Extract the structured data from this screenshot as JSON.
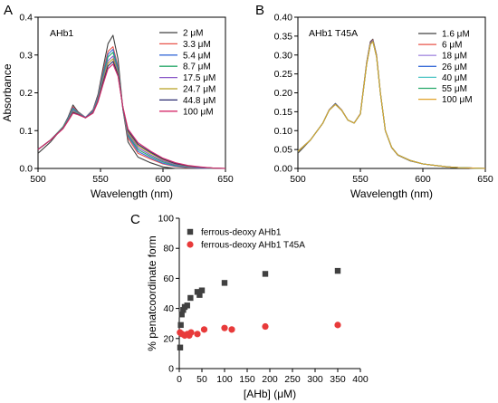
{
  "panels": {
    "a": {
      "letter": "A",
      "label": "AHb1"
    },
    "b": {
      "letter": "B",
      "label": "AHb1 T45A"
    },
    "c": {
      "letter": "C"
    }
  },
  "chart_data": [
    {
      "type": "line",
      "panel": "A",
      "xlabel": "Wavelength (nm)",
      "ylabel": "Absorbance",
      "xlim": [
        500,
        650
      ],
      "ylim": [
        0,
        0.4
      ],
      "xticks": [
        500,
        550,
        600,
        650
      ],
      "yticks": [
        0.0,
        0.1,
        0.2,
        0.3,
        0.4
      ],
      "legend_position": "top-right",
      "x": [
        500,
        510,
        520,
        524,
        528,
        532,
        538,
        544,
        548,
        552,
        556,
        560,
        564,
        568,
        572,
        580,
        590,
        600,
        610,
        620,
        630,
        640,
        650
      ],
      "series": [
        {
          "name": "2 μM",
          "color": "#404040",
          "values": [
            0.04,
            0.07,
            0.11,
            0.135,
            0.168,
            0.15,
            0.135,
            0.155,
            0.195,
            0.265,
            0.33,
            0.352,
            0.29,
            0.155,
            0.07,
            0.03,
            0.015,
            0.004,
            0.0,
            0.0,
            0.0,
            0.0,
            0.0
          ]
        },
        {
          "name": "3.3 μM",
          "color": "#e8534a",
          "values": [
            0.05,
            0.075,
            0.11,
            0.132,
            0.163,
            0.148,
            0.135,
            0.153,
            0.19,
            0.255,
            0.31,
            0.322,
            0.27,
            0.155,
            0.08,
            0.04,
            0.025,
            0.012,
            0.005,
            0.002,
            0.001,
            0.0,
            0.0
          ]
        },
        {
          "name": "5.4 μM",
          "color": "#3b6ed8",
          "values": [
            0.05,
            0.075,
            0.11,
            0.132,
            0.16,
            0.147,
            0.135,
            0.152,
            0.188,
            0.25,
            0.302,
            0.315,
            0.266,
            0.156,
            0.085,
            0.045,
            0.028,
            0.014,
            0.006,
            0.003,
            0.001,
            0.0,
            0.0
          ]
        },
        {
          "name": "8.7 μM",
          "color": "#27a86a",
          "values": [
            0.05,
            0.075,
            0.11,
            0.13,
            0.157,
            0.146,
            0.134,
            0.15,
            0.185,
            0.245,
            0.295,
            0.307,
            0.262,
            0.157,
            0.088,
            0.05,
            0.032,
            0.017,
            0.008,
            0.004,
            0.002,
            0.0,
            0.0
          ]
        },
        {
          "name": "17.5 μM",
          "color": "#8a58c8",
          "values": [
            0.05,
            0.075,
            0.108,
            0.128,
            0.153,
            0.145,
            0.134,
            0.149,
            0.182,
            0.238,
            0.285,
            0.297,
            0.256,
            0.158,
            0.092,
            0.055,
            0.036,
            0.02,
            0.01,
            0.005,
            0.002,
            0.001,
            0.0
          ]
        },
        {
          "name": "24.7 μM",
          "color": "#b8a020",
          "values": [
            0.05,
            0.075,
            0.107,
            0.127,
            0.15,
            0.144,
            0.134,
            0.148,
            0.18,
            0.232,
            0.278,
            0.29,
            0.252,
            0.16,
            0.096,
            0.06,
            0.04,
            0.023,
            0.012,
            0.006,
            0.003,
            0.001,
            0.0
          ]
        },
        {
          "name": "44.8 μM",
          "color": "#2a2a70",
          "values": [
            0.05,
            0.075,
            0.106,
            0.126,
            0.148,
            0.143,
            0.134,
            0.147,
            0.178,
            0.227,
            0.271,
            0.283,
            0.248,
            0.161,
            0.1,
            0.064,
            0.043,
            0.025,
            0.013,
            0.007,
            0.003,
            0.001,
            0.0
          ]
        },
        {
          "name": "100 μM",
          "color": "#d42a6a",
          "values": [
            0.05,
            0.075,
            0.105,
            0.125,
            0.146,
            0.142,
            0.134,
            0.146,
            0.176,
            0.222,
            0.264,
            0.276,
            0.244,
            0.162,
            0.104,
            0.068,
            0.046,
            0.027,
            0.015,
            0.008,
            0.004,
            0.001,
            0.0
          ]
        }
      ]
    },
    {
      "type": "line",
      "panel": "B",
      "xlabel": "Wavelength (nm)",
      "ylabel": "",
      "xlim": [
        500,
        650
      ],
      "ylim": [
        0,
        0.4
      ],
      "xticks": [
        500,
        550,
        600,
        650
      ],
      "yticks": [
        0.0,
        0.05,
        0.1,
        0.15,
        0.2,
        0.25,
        0.3,
        0.35,
        0.4
      ],
      "legend_position": "top-right",
      "x": [
        500,
        510,
        520,
        525,
        530,
        535,
        540,
        545,
        550,
        555,
        558,
        560,
        563,
        566,
        570,
        575,
        580,
        590,
        600,
        610,
        620,
        630,
        640,
        650
      ],
      "series": [
        {
          "name": "1.6 μM",
          "color": "#404040",
          "values": [
            0.04,
            0.075,
            0.12,
            0.155,
            0.172,
            0.155,
            0.128,
            0.12,
            0.145,
            0.28,
            0.335,
            0.342,
            0.3,
            0.2,
            0.1,
            0.055,
            0.035,
            0.02,
            0.012,
            0.008,
            0.004,
            0.002,
            0.001,
            0.0
          ]
        },
        {
          "name": "6 μM",
          "color": "#e8534a",
          "values": [
            0.045,
            0.075,
            0.12,
            0.155,
            0.17,
            0.155,
            0.128,
            0.12,
            0.145,
            0.278,
            0.332,
            0.34,
            0.298,
            0.2,
            0.1,
            0.056,
            0.036,
            0.021,
            0.012,
            0.008,
            0.004,
            0.002,
            0.001,
            0.0
          ]
        },
        {
          "name": "18 μM",
          "color": "#a78ee0",
          "values": [
            0.045,
            0.075,
            0.12,
            0.155,
            0.17,
            0.154,
            0.128,
            0.12,
            0.144,
            0.276,
            0.33,
            0.338,
            0.296,
            0.2,
            0.1,
            0.056,
            0.036,
            0.021,
            0.012,
            0.008,
            0.004,
            0.002,
            0.001,
            0.0
          ]
        },
        {
          "name": "26 μM",
          "color": "#3b6ed8",
          "values": [
            0.045,
            0.075,
            0.12,
            0.154,
            0.17,
            0.154,
            0.128,
            0.12,
            0.144,
            0.276,
            0.33,
            0.338,
            0.296,
            0.2,
            0.1,
            0.056,
            0.036,
            0.021,
            0.012,
            0.008,
            0.004,
            0.002,
            0.001,
            0.0
          ]
        },
        {
          "name": "40 μM",
          "color": "#4cc4c4",
          "values": [
            0.045,
            0.075,
            0.12,
            0.154,
            0.169,
            0.154,
            0.128,
            0.12,
            0.144,
            0.275,
            0.328,
            0.336,
            0.295,
            0.2,
            0.1,
            0.056,
            0.036,
            0.021,
            0.012,
            0.008,
            0.004,
            0.002,
            0.001,
            0.0
          ]
        },
        {
          "name": "55 μM",
          "color": "#27a86a",
          "values": [
            0.045,
            0.075,
            0.12,
            0.154,
            0.169,
            0.154,
            0.128,
            0.12,
            0.144,
            0.275,
            0.328,
            0.336,
            0.295,
            0.2,
            0.1,
            0.056,
            0.036,
            0.021,
            0.012,
            0.008,
            0.004,
            0.002,
            0.001,
            0.0
          ]
        },
        {
          "name": "100 μM",
          "color": "#e0a22a",
          "values": [
            0.045,
            0.075,
            0.12,
            0.154,
            0.169,
            0.154,
            0.128,
            0.12,
            0.144,
            0.275,
            0.328,
            0.336,
            0.295,
            0.2,
            0.1,
            0.056,
            0.036,
            0.021,
            0.012,
            0.008,
            0.004,
            0.002,
            0.001,
            0.0
          ]
        }
      ]
    },
    {
      "type": "scatter",
      "panel": "C",
      "xlabel": "[AHb] (μM)",
      "ylabel": "% penatcoordinate form",
      "xlim": [
        0,
        400
      ],
      "ylim": [
        0,
        100
      ],
      "xticks": [
        0,
        50,
        100,
        150,
        200,
        250,
        300,
        350,
        400
      ],
      "yticks": [
        0,
        20,
        40,
        60,
        80,
        100
      ],
      "legend_position": "top-left",
      "series": [
        {
          "name": "ferrous-deoxy AHb1",
          "color": "#404040",
          "marker": "square",
          "points": [
            [
              2,
              14
            ],
            [
              3.3,
              29
            ],
            [
              5.4,
              36
            ],
            [
              8.7,
              39
            ],
            [
              12,
              41
            ],
            [
              17.5,
              42
            ],
            [
              24.7,
              47
            ],
            [
              40,
              51
            ],
            [
              44.8,
              49
            ],
            [
              50,
              52
            ],
            [
              100,
              57
            ],
            [
              190,
              63
            ],
            [
              350,
              65
            ]
          ]
        },
        {
          "name": "ferrous-deoxy AHb1 T45A",
          "color": "#e83a3a",
          "marker": "circle",
          "points": [
            [
              1.6,
              24
            ],
            [
              6,
              23
            ],
            [
              12,
              22
            ],
            [
              18,
              23
            ],
            [
              22,
              22
            ],
            [
              26,
              24
            ],
            [
              40,
              23
            ],
            [
              55,
              26
            ],
            [
              100,
              27
            ],
            [
              116,
              26
            ],
            [
              190,
              28
            ],
            [
              350,
              29
            ]
          ]
        }
      ]
    }
  ]
}
